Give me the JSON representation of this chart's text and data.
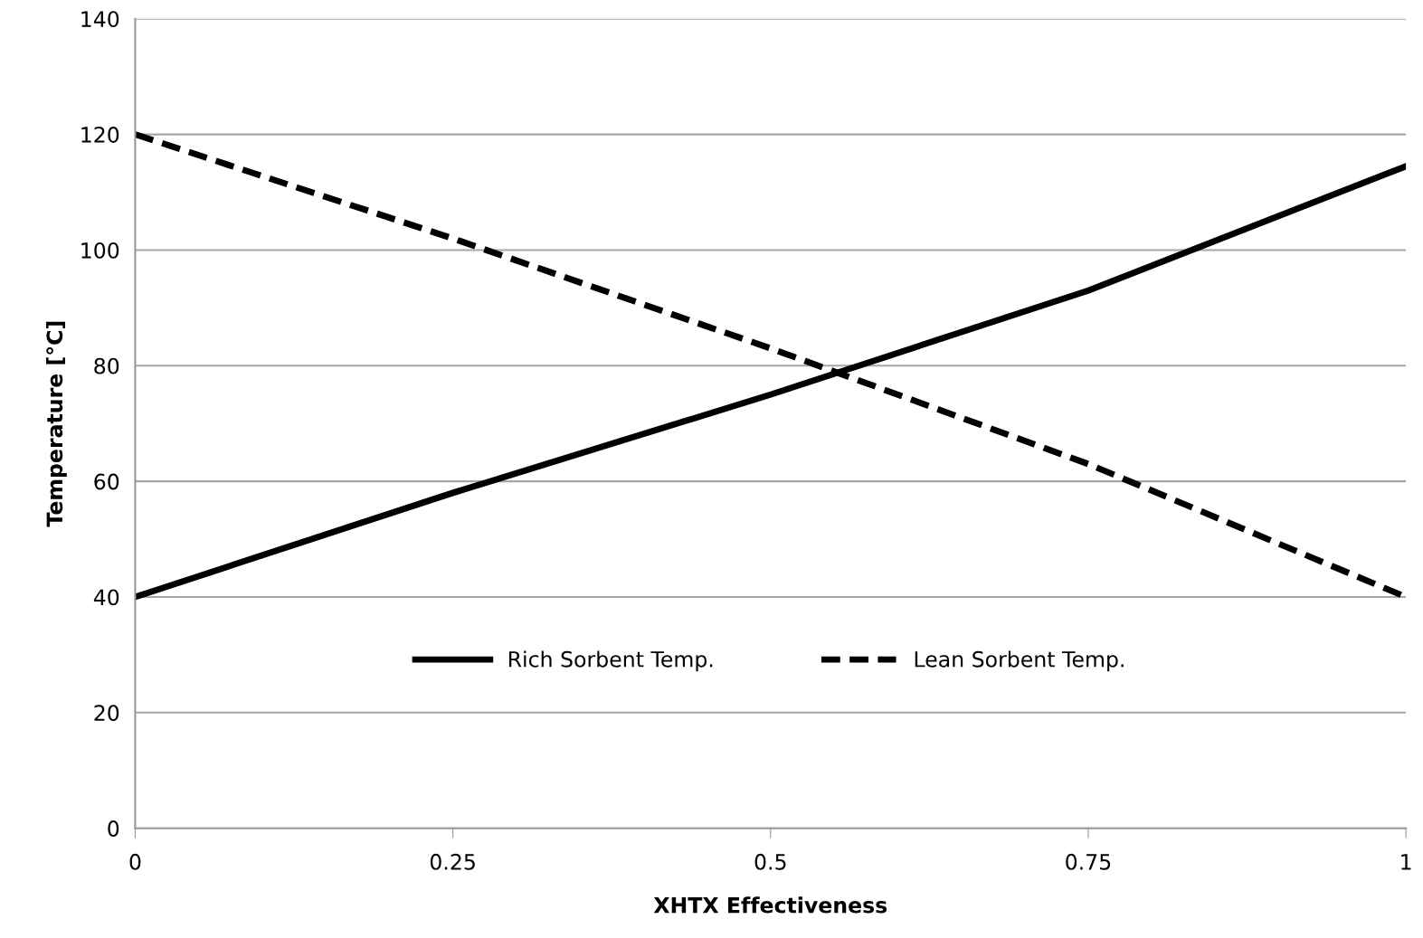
{
  "chart_data": {
    "type": "line",
    "xlabel": "XHTX Effectiveness",
    "ylabel": "Temperature [°C]",
    "x": [
      0,
      0.25,
      0.5,
      0.75,
      1
    ],
    "series": [
      {
        "name": "Rich Sorbent Temp.",
        "color": "#000000",
        "line_style": "solid",
        "values": [
          40,
          58,
          75,
          93,
          114.5
        ]
      },
      {
        "name": "Lean Sorbent Temp.",
        "color": "#000000",
        "line_style": "dashed",
        "values": [
          120,
          102,
          83,
          63,
          40
        ]
      }
    ],
    "xlim": [
      0,
      1
    ],
    "xticks": [
      0,
      0.25,
      0.5,
      0.75,
      1
    ],
    "ylim": [
      0,
      140
    ],
    "yticks": [
      0,
      20,
      40,
      60,
      80,
      100,
      120,
      140
    ],
    "grid": "y",
    "legend": "bottom",
    "marker": "none"
  }
}
